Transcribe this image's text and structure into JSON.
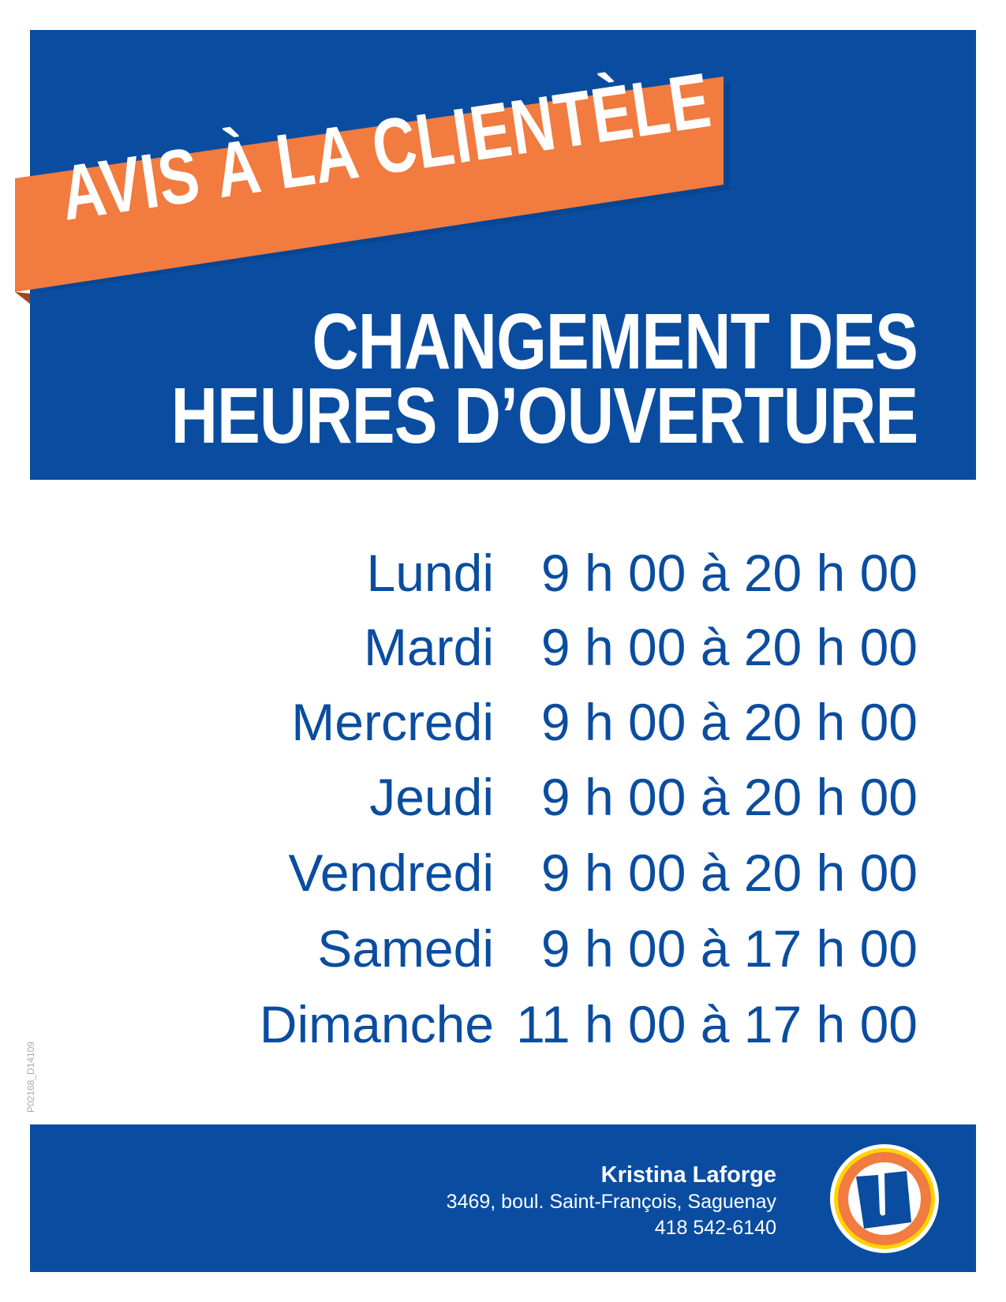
{
  "banner": {
    "text": "AVIS À LA CLIENTÈLE",
    "color": "#f27b40"
  },
  "title": {
    "line1": "CHANGEMENT DES",
    "line2": "HEURES D’OUVERTURE"
  },
  "brand_color": "#0a4da0",
  "hours": [
    {
      "day": "Lundi",
      "time": "9 h 00 à 20 h 00"
    },
    {
      "day": "Mardi",
      "time": "9 h 00 à 20 h 00"
    },
    {
      "day": "Mercredi",
      "time": "9 h 00 à 20 h 00"
    },
    {
      "day": "Jeudi",
      "time": "9 h 00 à 20 h 00"
    },
    {
      "day": "Vendredi",
      "time": "9 h 00 à 20 h 00"
    },
    {
      "day": "Samedi",
      "time": "9 h 00 à 17 h 00"
    },
    {
      "day": "Dimanche",
      "time": "11 h 00 à 17 h 00"
    }
  ],
  "code": "P02168_D14109",
  "footer": {
    "name": "Kristina Laforge",
    "address": "3469, boul. Saint-François, Saguenay",
    "phone": "418 542-6140",
    "logo_icon": "uniprix-u-logo"
  }
}
